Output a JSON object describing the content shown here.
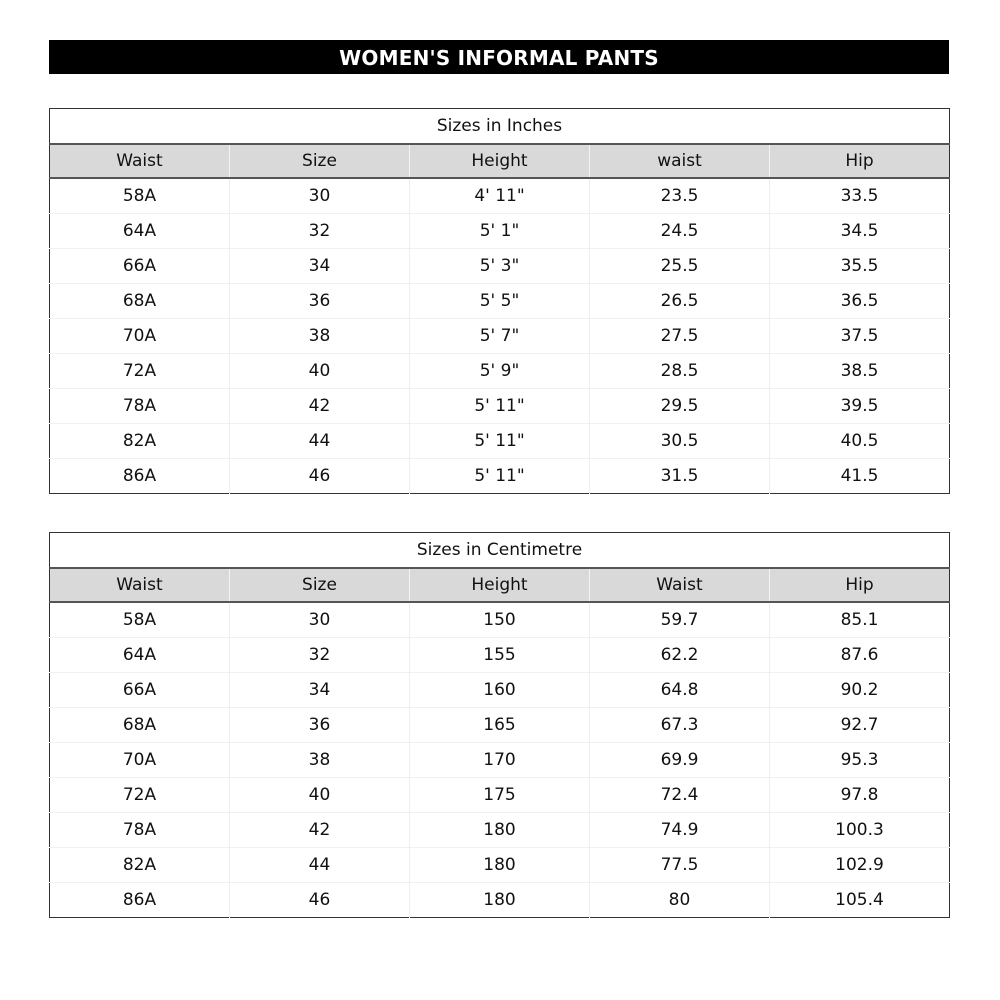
{
  "title": "WOMEN'S INFORMAL PANTS",
  "tables": [
    {
      "caption": "Sizes in Inches",
      "headers": [
        "Waist",
        "Size",
        "Height",
        "waist",
        "Hip"
      ],
      "rows": [
        [
          "58A",
          "30",
          "4' 11\"",
          "23.5",
          "33.5"
        ],
        [
          "64A",
          "32",
          "5' 1\"",
          "24.5",
          "34.5"
        ],
        [
          "66A",
          "34",
          "5' 3\"",
          "25.5",
          "35.5"
        ],
        [
          "68A",
          "36",
          "5' 5\"",
          "26.5",
          "36.5"
        ],
        [
          "70A",
          "38",
          "5' 7\"",
          "27.5",
          "37.5"
        ],
        [
          "72A",
          "40",
          "5' 9\"",
          "28.5",
          "38.5"
        ],
        [
          "78A",
          "42",
          "5' 11\"",
          "29.5",
          "39.5"
        ],
        [
          "82A",
          "44",
          "5' 11\"",
          "30.5",
          "40.5"
        ],
        [
          "86A",
          "46",
          "5' 11\"",
          "31.5",
          "41.5"
        ]
      ]
    },
    {
      "caption": "Sizes in Centimetre",
      "headers": [
        "Waist",
        "Size",
        "Height",
        "Waist",
        "Hip"
      ],
      "rows": [
        [
          "58A",
          "30",
          "150",
          "59.7",
          "85.1"
        ],
        [
          "64A",
          "32",
          "155",
          "62.2",
          "87.6"
        ],
        [
          "66A",
          "34",
          "160",
          "64.8",
          "90.2"
        ],
        [
          "68A",
          "36",
          "165",
          "67.3",
          "92.7"
        ],
        [
          "70A",
          "38",
          "170",
          "69.9",
          "95.3"
        ],
        [
          "72A",
          "40",
          "175",
          "72.4",
          "97.8"
        ],
        [
          "78A",
          "42",
          "180",
          "74.9",
          "100.3"
        ],
        [
          "82A",
          "44",
          "180",
          "77.5",
          "102.9"
        ],
        [
          "86A",
          "46",
          "180",
          "80",
          "105.4"
        ]
      ]
    }
  ]
}
